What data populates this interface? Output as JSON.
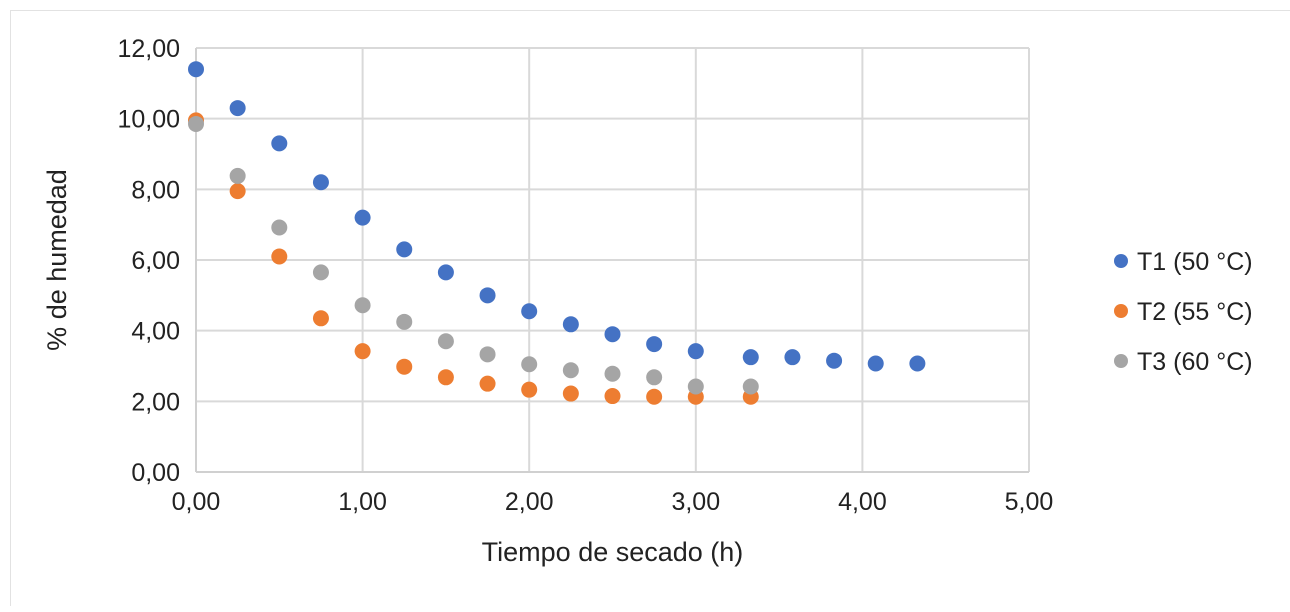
{
  "chart_data": {
    "type": "scatter",
    "title": "",
    "xlabel": "Tiempo de secado (h)",
    "ylabel": "% de humedad",
    "xlim": [
      0,
      5
    ],
    "ylim": [
      0,
      12
    ],
    "x_ticks": [
      0,
      1,
      2,
      3,
      4,
      5
    ],
    "y_ticks": [
      0,
      2,
      4,
      6,
      8,
      10,
      12
    ],
    "x_tick_labels": [
      "0,00",
      "1,00",
      "2,00",
      "3,00",
      "4,00",
      "5,00"
    ],
    "y_tick_labels": [
      "0,00",
      "2,00",
      "4,00",
      "6,00",
      "8,00",
      "10,00",
      "12,00"
    ],
    "grid": true,
    "legend_position": "right",
    "series": [
      {
        "name": "T1 (50 °C)",
        "color": "#4472c4",
        "points": [
          [
            0,
            11.4
          ],
          [
            0.25,
            10.3
          ],
          [
            0.5,
            9.3
          ],
          [
            0.75,
            8.2
          ],
          [
            1.0,
            7.2
          ],
          [
            1.25,
            6.3
          ],
          [
            1.5,
            5.65
          ],
          [
            1.75,
            5.0
          ],
          [
            2.0,
            4.55
          ],
          [
            2.25,
            4.18
          ],
          [
            2.5,
            3.9
          ],
          [
            2.75,
            3.62
          ],
          [
            3.0,
            3.42
          ],
          [
            3.33,
            3.25
          ],
          [
            3.58,
            3.25
          ],
          [
            3.83,
            3.15
          ],
          [
            4.08,
            3.07
          ],
          [
            4.33,
            3.07
          ]
        ]
      },
      {
        "name": "T2 (55 °C)",
        "color": "#ed7d31",
        "points": [
          [
            0,
            9.95
          ],
          [
            0.25,
            7.95
          ],
          [
            0.5,
            6.1
          ],
          [
            0.75,
            4.35
          ],
          [
            1.0,
            3.42
          ],
          [
            1.25,
            2.98
          ],
          [
            1.5,
            2.68
          ],
          [
            1.75,
            2.5
          ],
          [
            2.0,
            2.33
          ],
          [
            2.25,
            2.22
          ],
          [
            2.5,
            2.15
          ],
          [
            2.75,
            2.13
          ],
          [
            3.0,
            2.13
          ],
          [
            3.33,
            2.13
          ]
        ]
      },
      {
        "name": "T3 (60 °C)",
        "color": "#a5a5a5",
        "points": [
          [
            0,
            9.85
          ],
          [
            0.25,
            8.38
          ],
          [
            0.5,
            6.92
          ],
          [
            0.75,
            5.65
          ],
          [
            1.0,
            4.72
          ],
          [
            1.25,
            4.25
          ],
          [
            1.5,
            3.7
          ],
          [
            1.75,
            3.33
          ],
          [
            2.0,
            3.05
          ],
          [
            2.25,
            2.88
          ],
          [
            2.5,
            2.78
          ],
          [
            2.75,
            2.68
          ],
          [
            3.0,
            2.42
          ],
          [
            3.33,
            2.42
          ]
        ]
      }
    ]
  }
}
